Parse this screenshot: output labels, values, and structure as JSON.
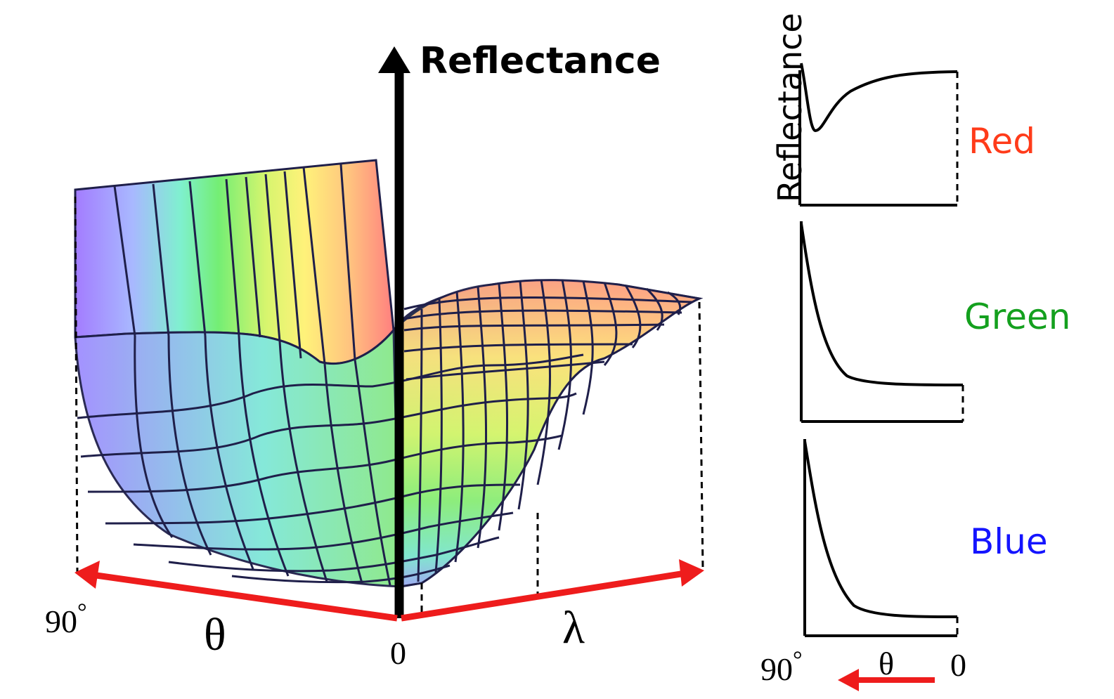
{
  "main_plot": {
    "vertical_axis_label": "Reflectance",
    "theta_label": "θ",
    "lambda_label": "λ",
    "theta_max_label": "90",
    "degree_mark": "°",
    "origin_label": "0",
    "colors": {
      "axis_arrows": "#ee1c1c",
      "grid_lines": "#1f1f4a",
      "surface_gradient": [
        "#a37cff",
        "#a8b8ff",
        "#7ff0cf",
        "#74ee74",
        "#d7f56e",
        "#fff27a",
        "#ffc47f",
        "#ff7f7f"
      ]
    }
  },
  "side_plots": {
    "reflectance_label": "Reflectance",
    "bands": [
      {
        "name": "Red",
        "color": "#ff3b1a"
      },
      {
        "name": "Green",
        "color": "#14a01e"
      },
      {
        "name": "Blue",
        "color": "#1414ff"
      }
    ],
    "x_axis": {
      "left_label": "90",
      "degree_mark": "°",
      "center_label": "θ",
      "right_label": "0",
      "arrow_color": "#ee1c1c"
    }
  }
}
